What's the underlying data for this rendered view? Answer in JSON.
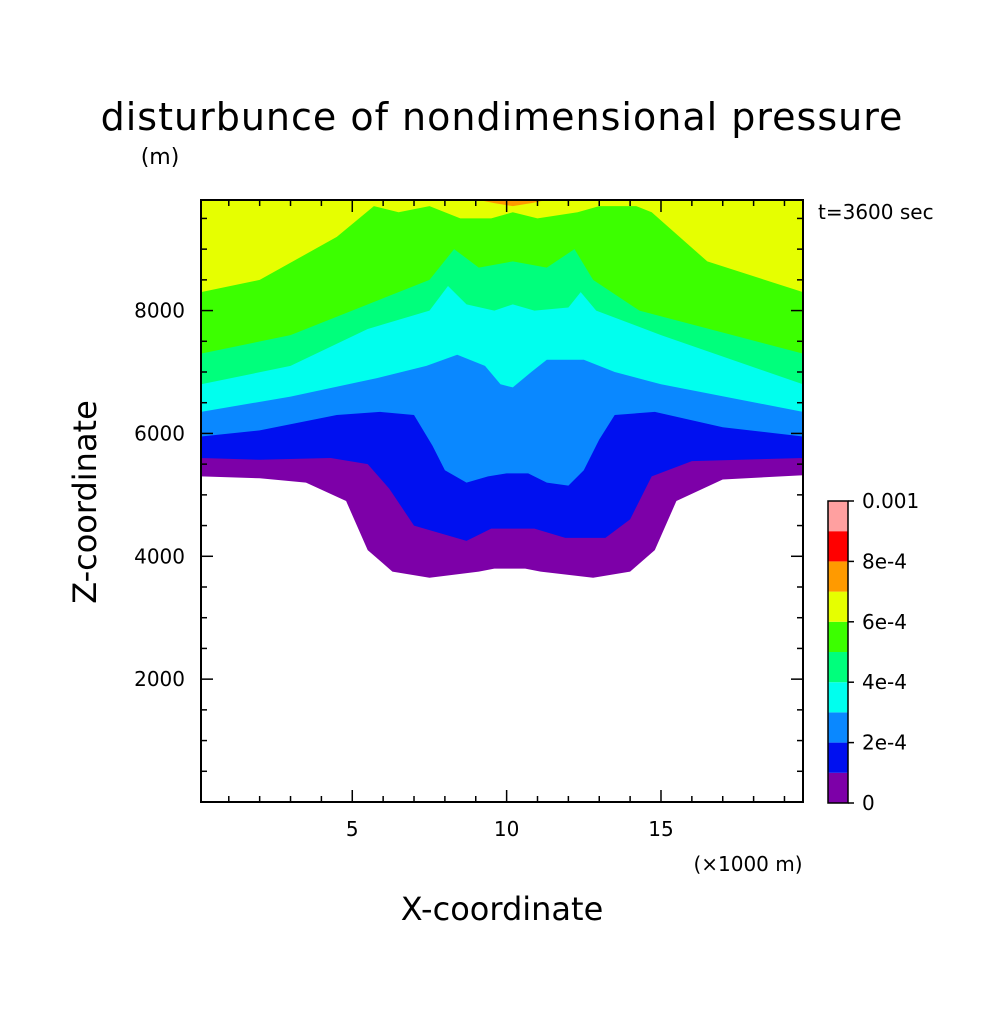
{
  "chart_data": {
    "type": "contour",
    "title": "disturbunce of nondimensional pressure",
    "y_unit": "(m)",
    "x_unit": "(×1000 m)",
    "time_label": "t=3600 sec",
    "xlabel": "X-coordinate",
    "ylabel": "Z-coordinate",
    "xlim": [
      0.1,
      19.6
    ],
    "ylim": [
      0,
      9800
    ],
    "x_ticks": [
      5,
      10,
      15
    ],
    "y_ticks": [
      2000,
      4000,
      6000,
      8000
    ],
    "x_tick_labels": [
      "5",
      "10",
      "15"
    ],
    "y_tick_labels": [
      "2000",
      "4000",
      "6000",
      "8000"
    ],
    "levels": [
      0,
      0.0001,
      0.0002,
      0.0003,
      0.0004,
      0.0005,
      0.0006,
      0.0007,
      0.0008,
      0.0009,
      0.001
    ],
    "level_colors": [
      "#7d00a8",
      "#0010f0",
      "#0a88ff",
      "#00ffee",
      "#00ff7c",
      "#3cff00",
      "#e6ff00",
      "#ff9a00",
      "#ff0000",
      "#ffa0a0"
    ],
    "colorbar_labels": [
      "0",
      "2e-4",
      "4e-4",
      "6e-4",
      "8e-4",
      "0.001"
    ],
    "contours": [
      {
        "level": 0,
        "boundary": [
          [
            0.1,
            5300
          ],
          [
            2,
            5270
          ],
          [
            3.5,
            5200
          ],
          [
            4.8,
            4900
          ],
          [
            5.5,
            4100
          ],
          [
            6.3,
            3750
          ],
          [
            7.5,
            3650
          ],
          [
            9.1,
            3750
          ],
          [
            9.6,
            3800
          ],
          [
            10.6,
            3800
          ],
          [
            11.1,
            3750
          ],
          [
            12.8,
            3650
          ],
          [
            14,
            3750
          ],
          [
            14.8,
            4100
          ],
          [
            15.5,
            4900
          ],
          [
            17,
            5250
          ],
          [
            19.6,
            5320
          ]
        ]
      },
      {
        "level": 0.0001,
        "boundary": [
          [
            0.1,
            5600
          ],
          [
            2,
            5570
          ],
          [
            4.3,
            5600
          ],
          [
            5.5,
            5500
          ],
          [
            6.2,
            5100
          ],
          [
            7,
            4500
          ],
          [
            8.7,
            4250
          ],
          [
            9.5,
            4450
          ],
          [
            10.9,
            4450
          ],
          [
            11.9,
            4300
          ],
          [
            13.2,
            4300
          ],
          [
            14,
            4600
          ],
          [
            14.7,
            5300
          ],
          [
            16,
            5550
          ],
          [
            19.6,
            5600
          ]
        ]
      },
      {
        "level": 0.0002,
        "boundary": [
          [
            0.1,
            5950
          ],
          [
            2,
            6050
          ],
          [
            4.5,
            6300
          ],
          [
            5.9,
            6350
          ],
          [
            7,
            6300
          ],
          [
            7.6,
            5800
          ],
          [
            8,
            5400
          ],
          [
            8.7,
            5200
          ],
          [
            9.4,
            5300
          ],
          [
            10,
            5350
          ],
          [
            10.7,
            5350
          ],
          [
            11.3,
            5200
          ],
          [
            12,
            5150
          ],
          [
            12.5,
            5400
          ],
          [
            13,
            5900
          ],
          [
            13.5,
            6300
          ],
          [
            14.8,
            6350
          ],
          [
            17,
            6100
          ],
          [
            19.6,
            5950
          ]
        ]
      },
      {
        "level": 0.0003,
        "boundary": [
          [
            0.1,
            6350
          ],
          [
            3,
            6600
          ],
          [
            5.8,
            6900
          ],
          [
            7.4,
            7100
          ],
          [
            8.4,
            7280
          ],
          [
            9.3,
            7100
          ],
          [
            9.8,
            6800
          ],
          [
            10.2,
            6750
          ],
          [
            10.8,
            7000
          ],
          [
            11.3,
            7200
          ],
          [
            12.5,
            7200
          ],
          [
            13.5,
            7000
          ],
          [
            15,
            6800
          ],
          [
            19.6,
            6350
          ]
        ]
      },
      {
        "level": 0.0004,
        "boundary": [
          [
            0.1,
            6800
          ],
          [
            3,
            7100
          ],
          [
            5.5,
            7700
          ],
          [
            7.5,
            8000
          ],
          [
            8.1,
            8400
          ],
          [
            8.7,
            8100
          ],
          [
            9.6,
            8000
          ],
          [
            10.2,
            8100
          ],
          [
            10.9,
            8000
          ],
          [
            12,
            8050
          ],
          [
            12.4,
            8300
          ],
          [
            12.9,
            8000
          ],
          [
            15,
            7600
          ],
          [
            19.6,
            6800
          ]
        ]
      },
      {
        "level": 0.0005,
        "boundary": [
          [
            0.1,
            7300
          ],
          [
            3,
            7600
          ],
          [
            6,
            8200
          ],
          [
            7.5,
            8500
          ],
          [
            8.3,
            9000
          ],
          [
            9.1,
            8700
          ],
          [
            10.2,
            8800
          ],
          [
            11.3,
            8700
          ],
          [
            12.2,
            9000
          ],
          [
            12.8,
            8500
          ],
          [
            14.3,
            8000
          ],
          [
            19.6,
            7300
          ]
        ]
      },
      {
        "level": 0.0006,
        "boundary": [
          [
            0.1,
            8300
          ],
          [
            2,
            8500
          ],
          [
            4.5,
            9200
          ],
          [
            5.7,
            9700
          ],
          [
            6.5,
            9600
          ],
          [
            7.5,
            9700
          ],
          [
            8.5,
            9500
          ],
          [
            9.5,
            9500
          ],
          [
            10.2,
            9600
          ],
          [
            11,
            9500
          ],
          [
            12.3,
            9600
          ],
          [
            13,
            9700
          ],
          [
            14.2,
            9700
          ],
          [
            14.7,
            9600
          ],
          [
            16.5,
            8800
          ],
          [
            19.6,
            8300
          ]
        ]
      },
      {
        "level": 0.0007,
        "boundary": [
          [
            9.1,
            9800
          ],
          [
            9.6,
            9750
          ],
          [
            10.2,
            9700
          ],
          [
            10.8,
            9750
          ],
          [
            11.3,
            9800
          ]
        ]
      }
    ]
  }
}
